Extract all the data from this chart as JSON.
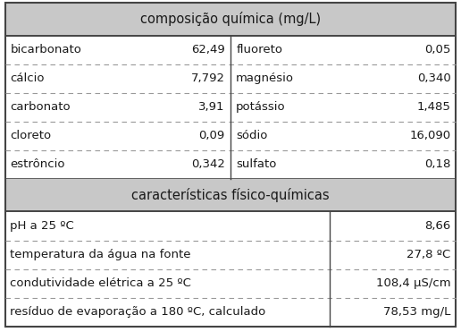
{
  "header1": "composição química (mg/L)",
  "header2": "características físico-químicas",
  "chem_rows": [
    [
      "bicarbonato",
      "62,49",
      "fluoreto",
      "0,05"
    ],
    [
      "cálcio",
      "7,792",
      "magnésio",
      "0,340"
    ],
    [
      "carbonato",
      "3,91",
      "potássio",
      "1,485"
    ],
    [
      "cloreto",
      "0,09",
      "sódio",
      "16,090"
    ],
    [
      "estrôncio",
      "0,342",
      "sulfato",
      "0,18"
    ]
  ],
  "phys_rows": [
    [
      "pH a 25 ºC",
      "8,66"
    ],
    [
      "temperatura da água na fonte",
      "27,8 ºC"
    ],
    [
      "condutividade elétrica a 25 ºC",
      "108,4 μS/cm"
    ],
    [
      "resíduo de evaporação a 180 ºC, calculado",
      "78,53 mg/L"
    ]
  ],
  "header_bg": "#c8c8c8",
  "row_bg": "#ffffff",
  "text_color": "#1a1a1a",
  "border_color": "#444444",
  "dashed_color": "#999999",
  "font_size": 9.5,
  "header_font_size": 10.5,
  "chem_mid": 0.5,
  "phys_split": 0.72
}
